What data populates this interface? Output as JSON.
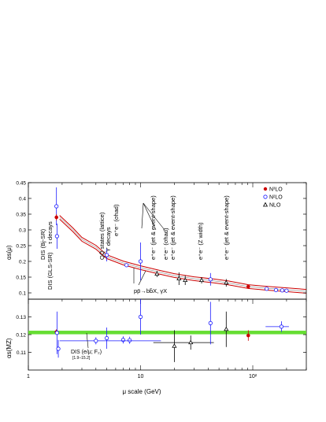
{
  "chart_data": [
    {
      "panel": "upper",
      "type": "scatter",
      "ylabel": "αs(μ)",
      "ylim": [
        0.08,
        0.45
      ],
      "x_scale": "log",
      "xlim": [
        1,
        300
      ],
      "yticks": [
        "0.1",
        "0.15",
        "0.2",
        "0.25",
        "0.3",
        "0.35",
        "0.4",
        "0.45"
      ],
      "ytick_values": [
        0.1,
        0.15,
        0.2,
        0.25,
        0.3,
        0.35,
        0.4,
        0.45
      ],
      "legend": {
        "placement": "top-right",
        "entries": [
          {
            "label": "N³LO",
            "marker": "filled-circle",
            "color": "#cc0000"
          },
          {
            "label": "N²LO",
            "marker": "open-circle",
            "color": "#1a1aff"
          },
          {
            "label": "NLO",
            "marker": "open-triangle",
            "color": "#000000"
          }
        ]
      },
      "band_color": "#cc0000",
      "curve": [
        {
          "x": 1.9,
          "y": 0.34
        },
        {
          "x": 2.5,
          "y": 0.3
        },
        {
          "x": 3,
          "y": 0.27
        },
        {
          "x": 4,
          "y": 0.245
        },
        {
          "x": 5,
          "y": 0.215
        },
        {
          "x": 7,
          "y": 0.195
        },
        {
          "x": 10,
          "y": 0.18
        },
        {
          "x": 15,
          "y": 0.165
        },
        {
          "x": 20,
          "y": 0.155
        },
        {
          "x": 30,
          "y": 0.145
        },
        {
          "x": 45,
          "y": 0.138
        },
        {
          "x": 60,
          "y": 0.132
        },
        {
          "x": 91.2,
          "y": 0.12
        },
        {
          "x": 130,
          "y": 0.115
        },
        {
          "x": 200,
          "y": 0.11
        },
        {
          "x": 300,
          "y": 0.105
        }
      ],
      "points": [
        {
          "x": 1.78,
          "y": 0.375,
          "err": 0.06,
          "order": "N2LO"
        },
        {
          "x": 1.78,
          "y": 0.34,
          "err": 0.01,
          "order": "N3LO"
        },
        {
          "x": 1.8,
          "y": 0.28,
          "err": 0.04,
          "order": "N2LO"
        },
        {
          "x": 5,
          "y": 0.22,
          "err": 0.02,
          "order": "N2LO"
        },
        {
          "x": 7.5,
          "y": 0.188,
          "err": 0.004,
          "order": "N2LO"
        },
        {
          "x": 10,
          "y": 0.2,
          "err": 0.06,
          "order": "N2LO"
        },
        {
          "x": 14,
          "y": 0.16,
          "err": 0.01,
          "order": "NLO"
        },
        {
          "x": 22,
          "y": 0.145,
          "err": 0.02,
          "order": "NLO"
        },
        {
          "x": 25,
          "y": 0.14,
          "err": 0.015,
          "order": "NLO"
        },
        {
          "x": 35,
          "y": 0.14,
          "err": 0.01,
          "order": "NLO"
        },
        {
          "x": 42,
          "y": 0.143,
          "err": 0.02,
          "order": "N2LO"
        },
        {
          "x": 58,
          "y": 0.132,
          "err": 0.012,
          "order": "NLO"
        },
        {
          "x": 91.2,
          "y": 0.12,
          "err": 0.003,
          "order": "N3LO"
        },
        {
          "x": 133,
          "y": 0.113,
          "err": 0.004,
          "order": "N2LO"
        },
        {
          "x": 161,
          "y": 0.109,
          "err": 0.003,
          "order": "N2LO"
        },
        {
          "x": 183,
          "y": 0.108,
          "err": 0.003,
          "order": "N2LO"
        },
        {
          "x": 200,
          "y": 0.107,
          "err": 0.003,
          "order": "N2LO"
        }
      ],
      "annotations": [
        {
          "text": "τ decays",
          "angle": -90
        },
        {
          "text": "DIS (Bj-SR)",
          "angle": -90
        },
        {
          "text": "DIS (GLS-SR)",
          "angle": -90
        },
        {
          "text": "ϒ decays",
          "angle": -90
        },
        {
          "text": "QQ̄ states (lattice)",
          "angle": -90
        },
        {
          "text": "e⁺e⁻ (σhad)",
          "angle": -90
        },
        {
          "text": "e⁺e⁻ (jet & event-shape)",
          "angle": -90
        },
        {
          "text": "e⁺e⁻ (σhad)",
          "angle": -90
        },
        {
          "text": "e⁺e⁻ (jet & event-shape)",
          "angle": -90
        },
        {
          "text": "e⁺e⁻ (Z width)",
          "angle": -90
        },
        {
          "text": "e⁺e⁻ (jet & event-shape)",
          "angle": -90
        },
        {
          "text": "pp̄→bb̄X, γX",
          "angle": 0
        }
      ]
    },
    {
      "panel": "lower",
      "type": "scatter",
      "ylabel": "αs(MZ)",
      "ylim": [
        0.1,
        0.14
      ],
      "x_scale": "log",
      "xlim": [
        1,
        300
      ],
      "xlabel": "μ scale     (GeV)",
      "yticks": [
        "0.11",
        "0.12",
        "0.13"
      ],
      "ytick_values": [
        0.11,
        0.12,
        0.13
      ],
      "xticks": [
        "1",
        "10",
        "10²"
      ],
      "xtick_values": [
        1,
        10,
        100
      ],
      "band": {
        "low": 0.1202,
        "high": 0.1222,
        "color": "#66dd33"
      },
      "points": [
        {
          "x": 1.78,
          "y": 0.1215,
          "err": 0.0015,
          "xerr": null,
          "order": "N3LO"
        },
        {
          "x": 1.8,
          "y": 0.121,
          "err": 0.012,
          "order": "N2LO"
        },
        {
          "x": 1.85,
          "y": 0.112,
          "err": 0.005,
          "order": "N2LO"
        },
        {
          "x": 5,
          "y": 0.118,
          "err": 0.006,
          "order": "N2LO"
        },
        {
          "x": 7,
          "y": 0.117,
          "err": 0.002,
          "order": "N2LO"
        },
        {
          "x": 8,
          "y": 0.1168,
          "err": 0.002,
          "order": "N2LO"
        },
        {
          "x": 4,
          "y": 0.1165,
          "err": 0.002,
          "xlo": 1.9,
          "xhi": 15.2,
          "order": "N2LO"
        },
        {
          "x": 10,
          "y": 0.13,
          "err": 0.01,
          "order": "N2LO"
        },
        {
          "x": 20,
          "y": 0.1135,
          "err": 0.009,
          "order": "NLO"
        },
        {
          "x": 28,
          "y": 0.1155,
          "err": 0.004,
          "xlo": 13,
          "xhi": 45,
          "order": "NLO"
        },
        {
          "x": 42,
          "y": 0.1265,
          "err": 0.012,
          "order": "N2LO"
        },
        {
          "x": 58,
          "y": 0.123,
          "err": 0.01,
          "order": "NLO"
        },
        {
          "x": 91.2,
          "y": 0.1195,
          "err": 0.003,
          "order": "N3LO"
        },
        {
          "x": 180,
          "y": 0.1245,
          "err": 0.003,
          "xlo": 130,
          "xhi": 210,
          "order": "N2LO"
        }
      ],
      "annotations": [
        {
          "text": "DIS (e/μ; F₂)"
        },
        {
          "text": "[1.9–15.2]"
        }
      ]
    }
  ]
}
